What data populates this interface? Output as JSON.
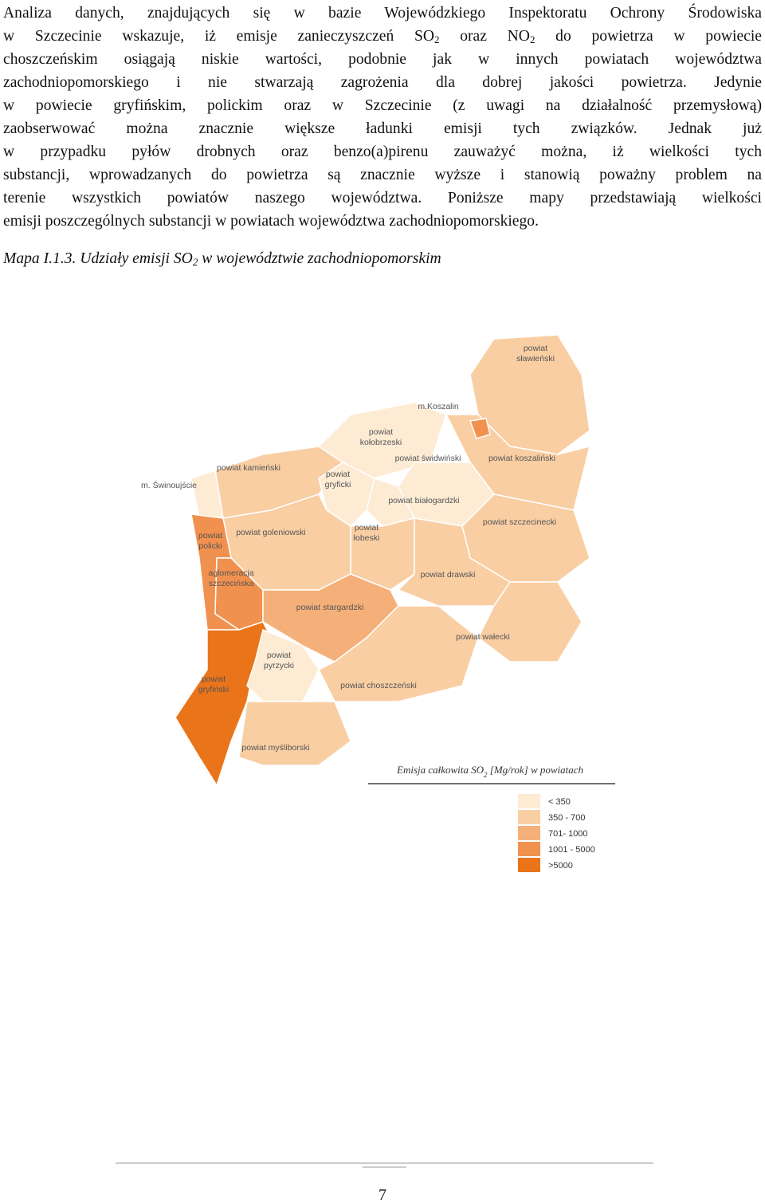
{
  "paragraph": [
    [
      "Analiza danych, znajdujących się w bazie Wojewódzkiego Inspektoratu Ochrony Środowiska"
    ],
    [
      "w Szczecinie wskazuje, iż emisje zanieczyszczeń SO",
      "2",
      " oraz NO",
      "2",
      " do powietrza w powiecie"
    ],
    [
      "choszczeńskim osiągają niskie wartości, podobnie jak w innych powiatach województwa"
    ],
    [
      "zachodniopomorskiego i nie stwarzają zagrożenia dla dobrej jakości powietrza. Jedynie"
    ],
    [
      "w powiecie gryfińskim, polickim oraz w Szczecinie (z uwagi na działalność przemysłową)"
    ],
    [
      "zaobserwować można znacznie większe ładunki emisji tych związków. Jednak już"
    ],
    [
      "w przypadku pyłów drobnych oraz benzo(a)pirenu zauważyć można, iż wielkości tych"
    ],
    [
      "substancji, wprowadzanych do powietrza są znacznie wyższe i stanowią poważny problem na"
    ],
    [
      "terenie wszystkich powiatów naszego województwa. Poniższe mapy przedstawiają wielkości"
    ],
    [
      "emisji poszczególnych substancji w powiatach województwa zachodniopomorskiego."
    ]
  ],
  "caption": [
    "Mapa I.1.3. Udziały emisji SO",
    "2",
    " w województwie zachodniopomorskim"
  ],
  "map": {
    "labels": [
      [
        "powiat",
        "sławieński"
      ],
      [
        "m.Koszalin"
      ],
      [
        "powiat",
        "kołobrzeski"
      ],
      [
        "powiat świdwiński"
      ],
      [
        "powiat koszaliński"
      ],
      [
        "powiat kamieński"
      ],
      [
        "m. Świnoujście"
      ],
      [
        "powiat",
        "gryficki"
      ],
      [
        "powiat białogardzki"
      ],
      [
        "powiat szczecinecki"
      ],
      [
        "powiat goleniowski"
      ],
      [
        "powiat",
        "łobeski"
      ],
      [
        "powiat",
        "policki"
      ],
      [
        "aglomeracja",
        "szczecińska"
      ],
      [
        "powiat drawski"
      ],
      [
        "powiat stargardzki"
      ],
      [
        "powiat wałecki"
      ],
      [
        "powiat",
        "pyrzycki"
      ],
      [
        "powiat",
        "gryfiński"
      ],
      [
        "powiat choszczeński"
      ],
      [
        "powiat myśliborski"
      ]
    ],
    "legend_title": [
      "Emisja całkowita SO",
      "2",
      " [Mg/rok] w powiatach"
    ],
    "legend": [
      {
        "label": "< 350",
        "color": "#fdebd4"
      },
      {
        "label": "350 - 700",
        "color": "#f9cea3"
      },
      {
        "label": "701- 1000",
        "color": "#f5b07a"
      },
      {
        "label": "1001 - 5000",
        "color": "#f1914f"
      },
      {
        "label": ">5000",
        "color": "#ea7419"
      }
    ]
  },
  "page_number": "7"
}
